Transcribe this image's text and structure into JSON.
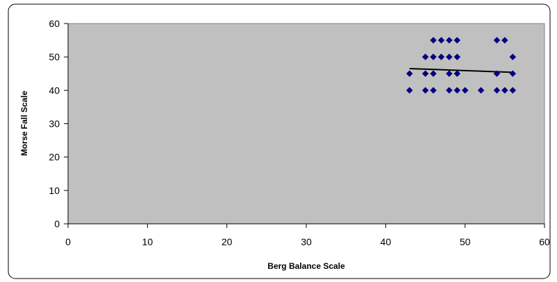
{
  "chart_data": {
    "type": "scatter",
    "title": "",
    "xlabel": "Berg Balance Scale",
    "ylabel": "Morse Fall Scale",
    "xlim": [
      0,
      60
    ],
    "ylim": [
      0,
      60
    ],
    "xticks": [
      0,
      10,
      20,
      30,
      40,
      50,
      60
    ],
    "yticks": [
      0,
      10,
      20,
      30,
      40,
      50,
      60
    ],
    "grid": false,
    "legend": "none",
    "colors": {
      "plot_background": "#c0c0c0",
      "marker": "#000080",
      "trendline": "#000000",
      "frame": "#000000"
    },
    "series": [
      {
        "marker": "diamond",
        "points": [
          [
            43,
            45
          ],
          [
            43,
            40
          ],
          [
            45,
            50
          ],
          [
            45,
            45
          ],
          [
            45,
            40
          ],
          [
            46,
            55
          ],
          [
            46,
            50
          ],
          [
            46,
            45
          ],
          [
            46,
            40
          ],
          [
            47,
            55
          ],
          [
            47,
            50
          ],
          [
            48,
            55
          ],
          [
            48,
            50
          ],
          [
            48,
            45
          ],
          [
            48,
            40
          ],
          [
            49,
            55
          ],
          [
            49,
            50
          ],
          [
            49,
            45
          ],
          [
            49,
            40
          ],
          [
            50,
            40
          ],
          [
            52,
            40
          ],
          [
            54,
            55
          ],
          [
            54,
            45
          ],
          [
            54,
            40
          ],
          [
            55,
            55
          ],
          [
            55,
            40
          ],
          [
            56,
            50
          ],
          [
            56,
            45
          ],
          [
            56,
            40
          ]
        ]
      }
    ],
    "trendline": {
      "type": "linear",
      "x": [
        43,
        56
      ],
      "y": [
        46.5,
        45.4
      ]
    }
  }
}
